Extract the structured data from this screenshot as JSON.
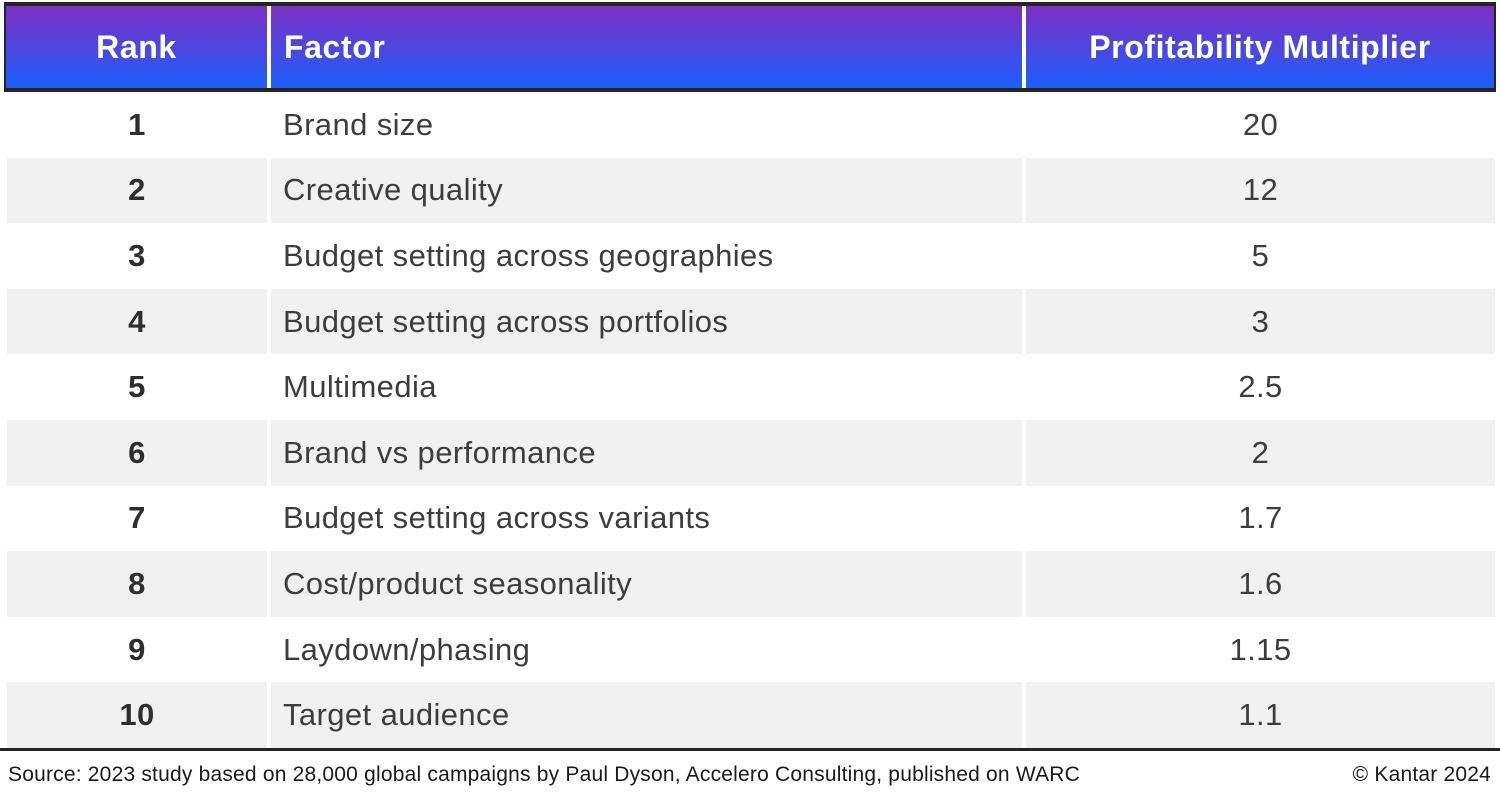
{
  "chart_data": {
    "type": "table",
    "title": "",
    "columns": [
      "Rank",
      "Factor",
      "Profitability Multiplier"
    ],
    "rows": [
      {
        "rank": "1",
        "factor": "Brand size",
        "multiplier": "20"
      },
      {
        "rank": "2",
        "factor": "Creative quality",
        "multiplier": "12"
      },
      {
        "rank": "3",
        "factor": "Budget setting across geographies",
        "multiplier": "5"
      },
      {
        "rank": "4",
        "factor": "Budget setting across portfolios",
        "multiplier": "3"
      },
      {
        "rank": "5",
        "factor": "Multimedia",
        "multiplier": "2.5"
      },
      {
        "rank": "6",
        "factor": "Brand vs performance",
        "multiplier": "2"
      },
      {
        "rank": "7",
        "factor": "Budget setting across variants",
        "multiplier": "1.7"
      },
      {
        "rank": "8",
        "factor": "Cost/product seasonality",
        "multiplier": "1.6"
      },
      {
        "rank": "9",
        "factor": "Laydown/phasing",
        "multiplier": "1.15"
      },
      {
        "rank": "10",
        "factor": "Target audience",
        "multiplier": "1.1"
      }
    ]
  },
  "table": {
    "columns": [
      {
        "key": "rank",
        "label": "Rank"
      },
      {
        "key": "factor",
        "label": "Factor"
      },
      {
        "key": "multiplier",
        "label": "Profitability Multiplier"
      }
    ]
  },
  "footer": {
    "source": "Source: 2023 study based on 28,000 global campaigns by Paul Dyson, Accelero Consulting, published on WARC",
    "copyright": "© Kantar 2024"
  },
  "colors": {
    "header_gradient_top": "#7d2fc3",
    "header_gradient_bottom": "#1b5ffb",
    "border_dark": "#242424",
    "stripe_gray": "#f1f1f1",
    "cell_text": "#3d3d3d",
    "rank_text": "#2e2e2e",
    "header_text": "#ffffff",
    "footer_text": "#1a1a1a"
  }
}
